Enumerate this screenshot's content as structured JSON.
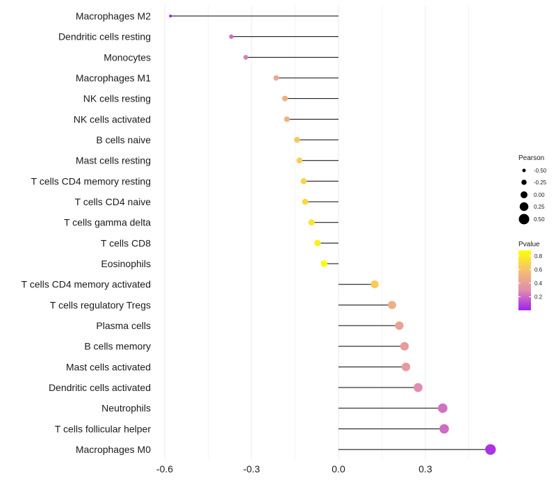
{
  "chart_data": {
    "type": "lollipop",
    "title": "",
    "xlabel": "",
    "ylabel": "",
    "xlim": [
      -0.6,
      0.53
    ],
    "xticks": [
      -0.6,
      -0.3,
      0.0,
      0.3
    ],
    "xtick_labels": [
      "-0.6",
      "-0.3",
      "0.0",
      "0.3"
    ],
    "grid": true,
    "categories": [
      "Macrophages M2",
      "Dendritic cells resting",
      "Monocytes",
      "Macrophages M1",
      "NK cells resting",
      "NK cells activated",
      "B cells naive",
      "Mast cells resting",
      "T cells CD4 memory resting",
      "T cells CD4 naive",
      "T cells gamma delta",
      "T cells CD8",
      "Eosinophils",
      "T cells CD4 memory activated",
      "T cells regulatory  Tregs",
      "Plasma cells",
      "B cells memory",
      "Mast cells activated",
      "Dendritic cells activated",
      "Neutrophils",
      "T cells follicular helper",
      "Macrophages M0"
    ],
    "values": [
      -0.58,
      -0.37,
      -0.32,
      -0.215,
      -0.185,
      -0.178,
      -0.143,
      -0.135,
      -0.12,
      -0.115,
      -0.093,
      -0.072,
      -0.05,
      0.125,
      0.185,
      0.21,
      0.228,
      0.233,
      0.275,
      0.36,
      0.365,
      0.525
    ],
    "pvalues": [
      0.01,
      0.2,
      0.25,
      0.45,
      0.5,
      0.52,
      0.62,
      0.65,
      0.68,
      0.7,
      0.76,
      0.8,
      0.86,
      0.64,
      0.49,
      0.42,
      0.39,
      0.38,
      0.3,
      0.22,
      0.21,
      0.05
    ],
    "legend_size": {
      "title": "Pearson",
      "entries": [
        "-0.50",
        "-0.25",
        "0.00",
        "0.25",
        "0.50"
      ],
      "values": [
        -0.5,
        -0.25,
        0.0,
        0.25,
        0.5
      ],
      "placement": "right"
    },
    "legend_color": {
      "title": "Pvalue",
      "ticks": [
        "0.8",
        "0.6",
        "0.4",
        "0.2"
      ],
      "tick_values": [
        0.8,
        0.6,
        0.4,
        0.2
      ],
      "range": [
        0.0,
        0.88
      ],
      "colors": [
        "#a020f0",
        "#e08cb0",
        "#f5c070",
        "#ffff00"
      ],
      "placement": "right"
    },
    "stem_color": "#000000",
    "grid_color": "#ebebeb"
  }
}
